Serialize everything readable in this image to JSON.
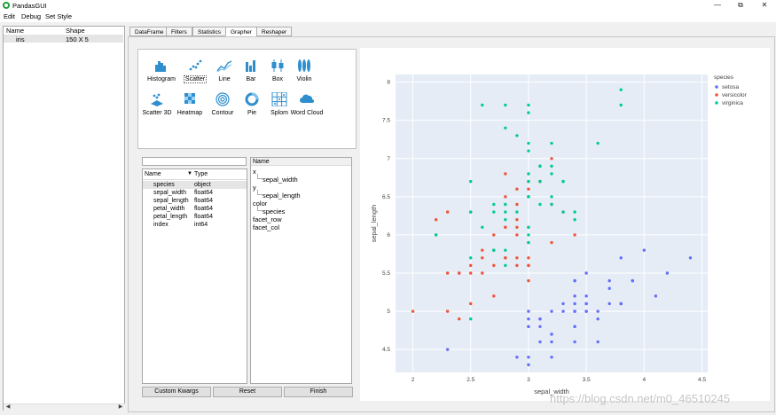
{
  "window": {
    "title": "PandasGUI",
    "minimize": "—",
    "maximize": "⧉",
    "close": "✕"
  },
  "menu": [
    "Edit",
    "Debug",
    "Set Style"
  ],
  "dataframes": {
    "headers": [
      "Name",
      "Shape"
    ],
    "rows": [
      {
        "name": "iris",
        "shape": "150 X 5"
      }
    ]
  },
  "tabs": [
    "DataFrame",
    "Filters",
    "Statistics",
    "Grapher",
    "Reshaper"
  ],
  "active_tab": "Grapher",
  "plot_types": [
    {
      "label": "Histogram",
      "icon": "histogram-icon"
    },
    {
      "label": "Scatter",
      "icon": "scatter-icon"
    },
    {
      "label": "Line",
      "icon": "line-icon"
    },
    {
      "label": "Bar",
      "icon": "bar-icon"
    },
    {
      "label": "Box",
      "icon": "box-icon"
    },
    {
      "label": "Violin",
      "icon": "violin-icon"
    },
    {
      "label": "Scatter 3D",
      "icon": "scatter-3d-icon"
    },
    {
      "label": "Heatmap",
      "icon": "heatmap-icon"
    },
    {
      "label": "Contour",
      "icon": "contour-icon"
    },
    {
      "label": "Pie",
      "icon": "pie-icon"
    },
    {
      "label": "Splom",
      "icon": "splom-icon"
    },
    {
      "label": "Word Cloud",
      "icon": "word-cloud-icon"
    }
  ],
  "selected_plot_type": "Scatter",
  "columns": {
    "headers": [
      "Name",
      "Type"
    ],
    "rows": [
      {
        "name": "species",
        "type": "object"
      },
      {
        "name": "sepal_width",
        "type": "float64"
      },
      {
        "name": "sepal_length",
        "type": "float64"
      },
      {
        "name": "petal_width",
        "type": "float64"
      },
      {
        "name": "petal_length",
        "type": "float64"
      },
      {
        "name": "index",
        "type": "int64"
      }
    ]
  },
  "args": {
    "header": "Name",
    "items": [
      {
        "key": "x",
        "value": "sepal_width"
      },
      {
        "key": "y",
        "value": "sepal_length"
      },
      {
        "key": "color",
        "value": "species"
      },
      {
        "key": "facet_row",
        "value": ""
      },
      {
        "key": "facet_col",
        "value": ""
      }
    ]
  },
  "buttons": {
    "custom_kwargs": "Custom Kwargs",
    "reset": "Reset",
    "finish": "Finish"
  },
  "chart_data": {
    "type": "scatter",
    "xlabel": "sepal_width",
    "ylabel": "sepal_length",
    "xlim": [
      1.85,
      4.55
    ],
    "ylim": [
      4.2,
      8.1
    ],
    "xticks": [
      2,
      2.5,
      3,
      3.5,
      4,
      4.5
    ],
    "yticks": [
      4.5,
      5,
      5.5,
      6,
      6.5,
      7,
      7.5,
      8
    ],
    "grid": true,
    "legend_title": "species",
    "legend_position": "top-right",
    "series": [
      {
        "name": "setosa",
        "color": "#636efa",
        "points": [
          [
            3.5,
            5.1
          ],
          [
            3.0,
            4.9
          ],
          [
            3.2,
            4.7
          ],
          [
            3.1,
            4.6
          ],
          [
            3.6,
            5.0
          ],
          [
            3.9,
            5.4
          ],
          [
            3.4,
            4.6
          ],
          [
            3.4,
            5.0
          ],
          [
            2.9,
            4.4
          ],
          [
            3.1,
            4.9
          ],
          [
            3.7,
            5.4
          ],
          [
            3.4,
            4.8
          ],
          [
            3.0,
            4.8
          ],
          [
            3.0,
            4.3
          ],
          [
            4.0,
            5.8
          ],
          [
            4.4,
            5.7
          ],
          [
            3.9,
            5.4
          ],
          [
            3.5,
            5.1
          ],
          [
            3.8,
            5.7
          ],
          [
            3.8,
            5.1
          ],
          [
            3.4,
            5.4
          ],
          [
            3.7,
            5.1
          ],
          [
            3.6,
            4.6
          ],
          [
            3.3,
            5.1
          ],
          [
            3.4,
            4.8
          ],
          [
            3.0,
            5.0
          ],
          [
            3.4,
            5.0
          ],
          [
            3.5,
            5.2
          ],
          [
            3.4,
            5.2
          ],
          [
            3.2,
            4.7
          ],
          [
            3.1,
            4.8
          ],
          [
            3.4,
            5.4
          ],
          [
            4.1,
            5.2
          ],
          [
            4.2,
            5.5
          ],
          [
            3.1,
            4.9
          ],
          [
            3.2,
            5.0
          ],
          [
            3.5,
            5.5
          ],
          [
            3.6,
            4.9
          ],
          [
            3.0,
            4.4
          ],
          [
            3.4,
            5.1
          ],
          [
            3.5,
            5.0
          ],
          [
            2.3,
            4.5
          ],
          [
            3.2,
            4.4
          ],
          [
            3.5,
            5.0
          ],
          [
            3.8,
            5.1
          ],
          [
            3.0,
            4.8
          ],
          [
            3.8,
            5.1
          ],
          [
            3.2,
            4.6
          ],
          [
            3.7,
            5.3
          ],
          [
            3.3,
            5.0
          ]
        ]
      },
      {
        "name": "versicolor",
        "color": "#ef553b",
        "points": [
          [
            3.2,
            7.0
          ],
          [
            3.2,
            6.4
          ],
          [
            3.1,
            6.9
          ],
          [
            2.3,
            5.5
          ],
          [
            2.8,
            6.5
          ],
          [
            2.8,
            5.7
          ],
          [
            3.3,
            6.3
          ],
          [
            2.4,
            4.9
          ],
          [
            2.9,
            6.6
          ],
          [
            2.7,
            5.2
          ],
          [
            2.0,
            5.0
          ],
          [
            3.0,
            5.9
          ],
          [
            2.2,
            6.0
          ],
          [
            2.9,
            6.1
          ],
          [
            2.9,
            5.6
          ],
          [
            3.1,
            6.7
          ],
          [
            3.0,
            5.6
          ],
          [
            2.7,
            5.8
          ],
          [
            2.2,
            6.2
          ],
          [
            2.5,
            5.6
          ],
          [
            3.2,
            5.9
          ],
          [
            2.8,
            6.1
          ],
          [
            2.5,
            6.3
          ],
          [
            2.8,
            6.1
          ],
          [
            2.9,
            6.4
          ],
          [
            3.0,
            6.6
          ],
          [
            2.8,
            6.8
          ],
          [
            3.0,
            6.7
          ],
          [
            2.9,
            6.0
          ],
          [
            2.6,
            5.7
          ],
          [
            2.4,
            5.5
          ],
          [
            2.4,
            5.5
          ],
          [
            2.7,
            5.8
          ],
          [
            2.7,
            6.0
          ],
          [
            3.0,
            5.4
          ],
          [
            3.4,
            6.0
          ],
          [
            3.1,
            6.7
          ],
          [
            2.3,
            6.3
          ],
          [
            3.0,
            5.6
          ],
          [
            2.5,
            5.5
          ],
          [
            2.6,
            5.5
          ],
          [
            3.0,
            6.1
          ],
          [
            2.6,
            5.8
          ],
          [
            2.3,
            5.0
          ],
          [
            2.7,
            5.6
          ],
          [
            3.0,
            5.7
          ],
          [
            2.9,
            5.7
          ],
          [
            2.9,
            6.2
          ],
          [
            2.5,
            5.1
          ],
          [
            2.8,
            5.7
          ]
        ]
      },
      {
        "name": "virginica",
        "color": "#00cc96",
        "points": [
          [
            3.3,
            6.3
          ],
          [
            2.7,
            5.8
          ],
          [
            3.0,
            7.1
          ],
          [
            2.9,
            6.3
          ],
          [
            3.0,
            6.5
          ],
          [
            3.0,
            7.6
          ],
          [
            2.5,
            4.9
          ],
          [
            2.9,
            7.3
          ],
          [
            2.5,
            6.7
          ],
          [
            3.6,
            7.2
          ],
          [
            3.2,
            6.5
          ],
          [
            2.7,
            6.4
          ],
          [
            3.0,
            6.8
          ],
          [
            2.5,
            5.7
          ],
          [
            2.8,
            5.8
          ],
          [
            3.2,
            6.4
          ],
          [
            3.0,
            6.5
          ],
          [
            3.8,
            7.7
          ],
          [
            2.6,
            7.7
          ],
          [
            2.2,
            6.0
          ],
          [
            3.2,
            6.9
          ],
          [
            2.8,
            5.6
          ],
          [
            2.8,
            7.7
          ],
          [
            2.7,
            6.3
          ],
          [
            3.3,
            6.7
          ],
          [
            3.2,
            7.2
          ],
          [
            2.8,
            6.2
          ],
          [
            3.0,
            6.1
          ],
          [
            2.8,
            6.4
          ],
          [
            3.0,
            7.2
          ],
          [
            2.8,
            7.4
          ],
          [
            3.8,
            7.9
          ],
          [
            2.8,
            6.4
          ],
          [
            2.8,
            6.3
          ],
          [
            2.6,
            6.1
          ],
          [
            3.0,
            7.7
          ],
          [
            3.4,
            6.3
          ],
          [
            3.1,
            6.4
          ],
          [
            3.0,
            6.0
          ],
          [
            3.1,
            6.9
          ],
          [
            3.1,
            6.7
          ],
          [
            3.1,
            6.9
          ],
          [
            2.7,
            5.8
          ],
          [
            3.2,
            6.8
          ],
          [
            3.3,
            6.7
          ],
          [
            3.0,
            6.7
          ],
          [
            2.5,
            6.3
          ],
          [
            3.0,
            6.5
          ],
          [
            3.4,
            6.2
          ],
          [
            3.0,
            5.9
          ]
        ]
      }
    ]
  },
  "watermark": "https://blog.csdn.net/m0_46510245"
}
